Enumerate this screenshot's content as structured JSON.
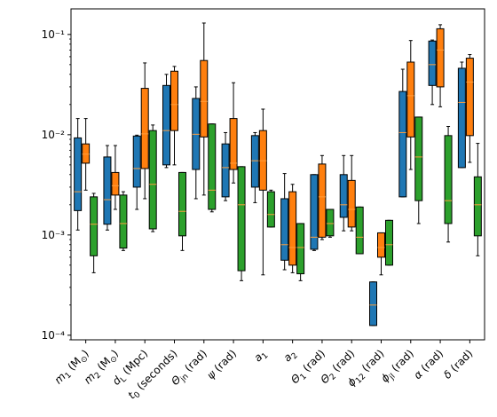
{
  "chart_data": {
    "type": "box",
    "title": "",
    "xlabel": "",
    "ylabel": "",
    "yscale": "log",
    "ylim": [
      9e-05,
      0.18
    ],
    "yticks": [
      {
        "value": 0.0001,
        "label": "10⁻⁴"
      },
      {
        "value": 0.001,
        "label": "10⁻³"
      },
      {
        "value": 0.01,
        "label": "10⁻²"
      },
      {
        "value": 0.1,
        "label": "10⁻¹"
      }
    ],
    "categories": [
      {
        "sym": "m",
        "sub": "1",
        "unit": " (M",
        "unitsub": "⊙",
        "tail": ")"
      },
      {
        "sym": "m",
        "sub": "2",
        "unit": " (M",
        "unitsub": "⊙",
        "tail": ")"
      },
      {
        "sym": "d",
        "sub": "L",
        "unit": " (Mpc)",
        "unitsub": "",
        "tail": ""
      },
      {
        "sym": "t",
        "sub": "0",
        "unit": " (seconds)",
        "unitsub": "",
        "tail": ""
      },
      {
        "sym": "Θ",
        "sub": "jn",
        "unit": " (rad)",
        "unitsub": "",
        "tail": ""
      },
      {
        "sym": "ψ",
        "sub": "",
        "unit": " (rad)",
        "unitsub": "",
        "tail": ""
      },
      {
        "sym": "a",
        "sub": "1",
        "unit": "",
        "unitsub": "",
        "tail": ""
      },
      {
        "sym": "a",
        "sub": "2",
        "unit": "",
        "unitsub": "",
        "tail": ""
      },
      {
        "sym": "Θ",
        "sub": "1",
        "unit": " (rad)",
        "unitsub": "",
        "tail": ""
      },
      {
        "sym": "Θ",
        "sub": "2",
        "unit": " (rad)",
        "unitsub": "",
        "tail": ""
      },
      {
        "sym": "ϕ",
        "sub": "12",
        "unit": " (rad)",
        "unitsub": "",
        "tail": ""
      },
      {
        "sym": "ϕ",
        "sub": "jl",
        "unit": " (rad)",
        "unitsub": "",
        "tail": ""
      },
      {
        "sym": "α",
        "sub": "",
        "unit": " (rad)",
        "unitsub": "",
        "tail": ""
      },
      {
        "sym": "δ",
        "sub": "",
        "unit": " (rad)",
        "unitsub": "",
        "tail": ""
      }
    ],
    "series": [
      {
        "color": "#1f77b4",
        "boxes": [
          {
            "min": 0.00112,
            "q1": 0.00175,
            "median": 0.0027,
            "q3": 0.0093,
            "max": 0.0145
          },
          {
            "min": 0.00112,
            "q1": 0.00128,
            "median": 0.00225,
            "q3": 0.006,
            "max": 0.0078
          },
          {
            "min": 0.0018,
            "q1": 0.003,
            "median": 0.0046,
            "q3": 0.0097,
            "max": 0.0099
          },
          {
            "min": 0.0047,
            "q1": 0.005,
            "median": 0.011,
            "q3": 0.031,
            "max": 0.04
          },
          {
            "min": 0.0023,
            "q1": 0.0045,
            "median": 0.0101,
            "q3": 0.023,
            "max": 0.03
          },
          {
            "min": 0.0022,
            "q1": 0.0024,
            "median": 0.0047,
            "q3": 0.0081,
            "max": 0.0105
          },
          {
            "min": 0.0021,
            "q1": 0.003,
            "median": 0.0055,
            "q3": 0.0098,
            "max": 0.0105
          },
          {
            "min": 0.00045,
            "q1": 0.00056,
            "median": 0.0008,
            "q3": 0.0023,
            "max": 0.0041
          },
          {
            "min": 0.0007,
            "q1": 0.00072,
            "median": 0.00095,
            "q3": 0.004,
            "max": 0.004
          },
          {
            "min": 0.0011,
            "q1": 0.0015,
            "median": 0.002,
            "q3": 0.004,
            "max": 0.0062
          },
          {
            "min": 0.000125,
            "q1": 0.000125,
            "median": 0.0002,
            "q3": 0.00034,
            "max": 0.00034
          },
          {
            "min": 0.0024,
            "q1": 0.0024,
            "median": 0.0105,
            "q3": 0.027,
            "max": 0.045
          },
          {
            "min": 0.02,
            "q1": 0.031,
            "median": 0.05,
            "q3": 0.086,
            "max": 0.088
          },
          {
            "min": 0.0047,
            "q1": 0.0047,
            "median": 0.021,
            "q3": 0.046,
            "max": 0.053
          }
        ]
      },
      {
        "color": "#ff7f0e",
        "boxes": [
          {
            "min": 0.0028,
            "q1": 0.0052,
            "median": 0.0064,
            "q3": 0.0081,
            "max": 0.0145
          },
          {
            "min": 0.0018,
            "q1": 0.0025,
            "median": 0.0031,
            "q3": 0.0042,
            "max": 0.0078
          },
          {
            "min": 0.0023,
            "q1": 0.0046,
            "median": 0.0102,
            "q3": 0.029,
            "max": 0.052
          },
          {
            "min": 0.005,
            "q1": 0.011,
            "median": 0.02,
            "q3": 0.043,
            "max": 0.048
          },
          {
            "min": 0.0025,
            "q1": 0.0095,
            "median": 0.0215,
            "q3": 0.055,
            "max": 0.13
          },
          {
            "min": 0.0033,
            "q1": 0.0045,
            "median": 0.0052,
            "q3": 0.0145,
            "max": 0.033
          },
          {
            "min": 0.0004,
            "q1": 0.0028,
            "median": 0.0055,
            "q3": 0.011,
            "max": 0.018
          },
          {
            "min": 0.00042,
            "q1": 0.0005,
            "median": 0.00075,
            "q3": 0.0027,
            "max": 0.0032
          },
          {
            "min": 0.0009,
            "q1": 0.00095,
            "median": 0.0024,
            "q3": 0.0051,
            "max": 0.0062
          },
          {
            "min": 0.0011,
            "q1": 0.0012,
            "median": 0.0018,
            "q3": 0.0035,
            "max": 0.0062
          },
          {
            "min": 0.0004,
            "q1": 0.0006,
            "median": 0.00075,
            "q3": 0.00105,
            "max": 0.00105
          },
          {
            "min": 0.0045,
            "q1": 0.0095,
            "median": 0.0245,
            "q3": 0.053,
            "max": 0.087
          },
          {
            "min": 0.019,
            "q1": 0.03,
            "median": 0.07,
            "q3": 0.114,
            "max": 0.125
          },
          {
            "min": 0.0053,
            "q1": 0.0098,
            "median": 0.0335,
            "q3": 0.058,
            "max": 0.063
          }
        ]
      },
      {
        "color": "#2ca02c",
        "boxes": [
          {
            "min": 0.00042,
            "q1": 0.00062,
            "median": 0.00128,
            "q3": 0.0024,
            "max": 0.0026
          },
          {
            "min": 0.0007,
            "q1": 0.00074,
            "median": 0.0013,
            "q3": 0.0025,
            "max": 0.0027
          },
          {
            "min": 0.00108,
            "q1": 0.00115,
            "median": 0.0032,
            "q3": 0.011,
            "max": 0.0125
          },
          {
            "min": 0.0007,
            "q1": 0.00098,
            "median": 0.00172,
            "q3": 0.0042,
            "max": 0.0042
          },
          {
            "min": 0.0017,
            "q1": 0.0018,
            "median": 0.0028,
            "q3": 0.0128,
            "max": 0.0128
          },
          {
            "min": 0.00035,
            "q1": 0.00044,
            "median": 0.002,
            "q3": 0.0048,
            "max": 0.0048
          },
          {
            "min": 0.0012,
            "q1": 0.0012,
            "median": 0.0016,
            "q3": 0.0027,
            "max": 0.0028
          },
          {
            "min": 0.00035,
            "q1": 0.00041,
            "median": 0.00075,
            "q3": 0.0013,
            "max": 0.0013
          },
          {
            "min": 0.00095,
            "q1": 0.00098,
            "median": 0.0013,
            "q3": 0.0018,
            "max": 0.0018
          },
          {
            "min": 0.00065,
            "q1": 0.00065,
            "median": 0.00095,
            "q3": 0.0019,
            "max": 0.0019
          },
          {
            "min": 0.0005,
            "q1": 0.0005,
            "median": 0.0008,
            "q3": 0.0014,
            "max": 0.0014
          },
          {
            "min": 0.0013,
            "q1": 0.0022,
            "median": 0.006,
            "q3": 0.015,
            "max": 0.015
          },
          {
            "min": 0.00085,
            "q1": 0.0013,
            "median": 0.0022,
            "q3": 0.0098,
            "max": 0.0121
          },
          {
            "min": 0.00062,
            "q1": 0.00098,
            "median": 0.002,
            "q3": 0.0038,
            "max": 0.0082
          }
        ]
      }
    ]
  }
}
